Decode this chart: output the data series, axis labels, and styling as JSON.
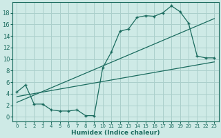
{
  "title": "",
  "xlabel": "Humidex (Indice chaleur)",
  "bg_color": "#ceeae6",
  "grid_color": "#aacfcb",
  "line_color": "#1a6b5e",
  "xlim": [
    -0.5,
    23.5
  ],
  "ylim": [
    -0.8,
    19.8
  ],
  "xticks": [
    0,
    1,
    2,
    3,
    4,
    5,
    6,
    7,
    8,
    9,
    10,
    11,
    12,
    13,
    14,
    15,
    16,
    17,
    18,
    19,
    20,
    21,
    22,
    23
  ],
  "yticks": [
    0,
    2,
    4,
    6,
    8,
    10,
    12,
    14,
    16,
    18
  ],
  "curve1_x": [
    0,
    1,
    2,
    3,
    4,
    5,
    6,
    7,
    8,
    9,
    10,
    11,
    12,
    13,
    14,
    15,
    16,
    17,
    18,
    19,
    20,
    21,
    22,
    23
  ],
  "curve1_y": [
    4.3,
    5.5,
    2.2,
    2.2,
    1.2,
    1.0,
    1.0,
    1.2,
    0.2,
    0.2,
    8.5,
    11.2,
    14.8,
    15.2,
    17.2,
    17.5,
    17.4,
    18.0,
    19.2,
    18.2,
    16.2,
    10.5,
    10.2,
    10.2
  ],
  "line2_x": [
    0,
    23
  ],
  "line2_y": [
    2.5,
    17.0
  ],
  "line3_x": [
    0,
    23
  ],
  "line3_y": [
    3.5,
    9.5
  ],
  "xlabel_fontsize": 6.5,
  "tick_fontsize_x": 5,
  "tick_fontsize_y": 6
}
